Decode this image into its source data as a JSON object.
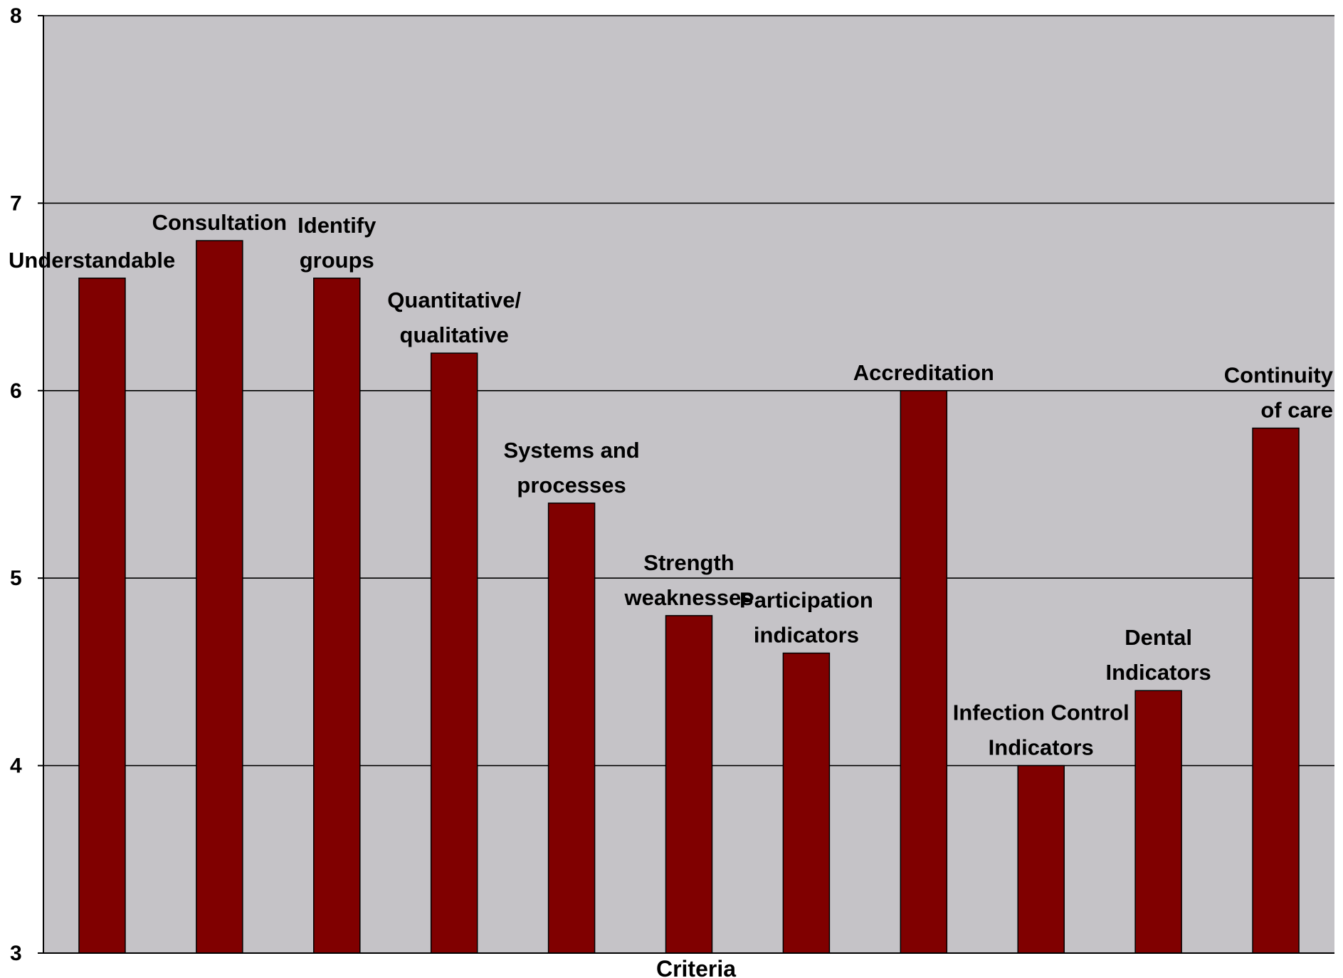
{
  "chart_data": {
    "type": "bar",
    "title": "",
    "xlabel": "Criteria",
    "ylabel": "",
    "ylim": [
      3,
      8
    ],
    "yticks": [
      3,
      4,
      5,
      6,
      7,
      8
    ],
    "grid": true,
    "plot_background": "#c5c3c7",
    "bar_color": "#800000",
    "categories": [
      "Understandable",
      "Consultation",
      "Identify groups",
      "Quantitative/ qualitative",
      "Systems and processes",
      "Strength weaknesses",
      "Participation indicators",
      "Accreditation",
      "Infection Control Indicators",
      "Dental Indicators",
      "Continuity of care"
    ],
    "label_lines": [
      [
        "Understandable"
      ],
      [
        "Consultation"
      ],
      [
        "Identify",
        "groups"
      ],
      [
        "Quantitative/",
        "qualitative"
      ],
      [
        "Systems and",
        "processes"
      ],
      [
        "Strength",
        "weaknesses"
      ],
      [
        "Participation",
        "indicators"
      ],
      [
        "Accreditation"
      ],
      [
        "Infection Control",
        "Indicators"
      ],
      [
        "Dental",
        "Indicators"
      ],
      [
        "Continuity",
        "of care"
      ]
    ],
    "values": [
      6.6,
      6.8,
      6.6,
      6.2,
      5.4,
      4.8,
      4.6,
      6.0,
      4.0,
      4.4,
      5.8
    ]
  }
}
